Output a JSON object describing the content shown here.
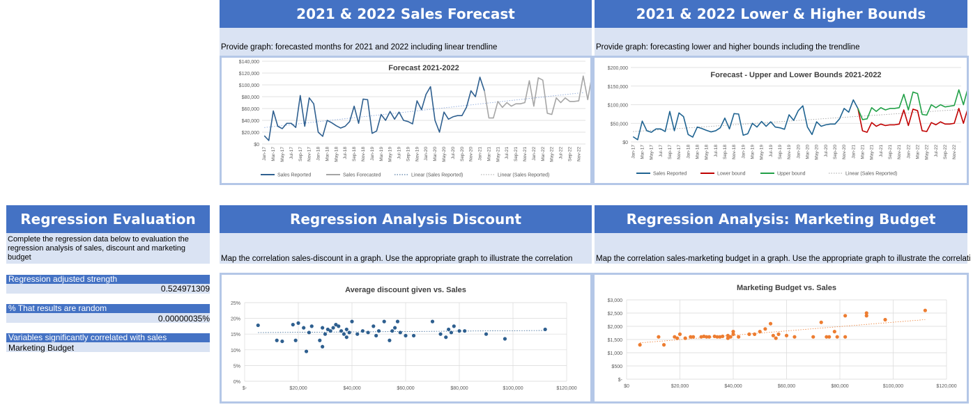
{
  "panels": {
    "forecast": {
      "header": "2021 & 2022 Sales Forecast",
      "instruction": "Provide graph: forecasted months for 2021 and 2022 including linear trendline"
    },
    "bounds": {
      "header": "2021 & 2022 Lower & Higher Bounds",
      "instruction": "Provide graph: forecasting lower and higher bounds including the trendline"
    },
    "regression_eval": {
      "header": "Regression Evaluation",
      "instruction": "Complete the regression data below to evaluation the regression analysis of sales, discount and marketing budget",
      "adj_strength_label": "Regression adjusted strength",
      "adj_strength_value": "0.524971309",
      "random_label": "% That results are random",
      "random_value": "0.00000035%",
      "variables_label": "Variables significantly correlated with sales",
      "variables_value": "Marketing Budget"
    },
    "discount": {
      "header": "Regression Analysis Discount",
      "instruction": "Map the correlation sales-discount in a graph. Use the appropriate graph to illustrate the correlation"
    },
    "marketing": {
      "header": "Regression Analysis: Marketing Budget",
      "instruction": "Map the correlation sales-marketing budget in a graph. Use the appropriate graph to illustrate the correlation"
    }
  },
  "chart_data": [
    {
      "type": "line",
      "title": "Forecast 2021-2022",
      "ylim": [
        0,
        140000
      ],
      "yticks": [
        "$0",
        "$20,000",
        "$40,000",
        "$60,000",
        "$80,000",
        "$100,000",
        "$120,000",
        "$140,000"
      ],
      "xticks": [
        "Jan-17",
        "Mar-17",
        "May-17",
        "Jul-17",
        "Sep-17",
        "Nov-17",
        "Jan-18",
        "Mar-18",
        "May-18",
        "Jul-18",
        "Sep-18",
        "Nov-18",
        "Jan-19",
        "Mar-19",
        "May-19",
        "Jul-19",
        "Sep-19",
        "Nov-19",
        "Jan-20",
        "Mar-20",
        "May-20",
        "Jul-20",
        "Sep-20",
        "Nov-20",
        "Jan-21",
        "Mar-21",
        "May-21",
        "Jul-21",
        "Sep-21",
        "Nov-21",
        "Jan-22",
        "Mar-22",
        "May-22",
        "Jul-22",
        "Sep-22",
        "Nov-22"
      ],
      "series": [
        {
          "name": "Sales Reported",
          "color": "#2e5f8f",
          "values": [
            14000,
            6000,
            56000,
            30000,
            26000,
            35000,
            35000,
            28000,
            82000,
            30000,
            78000,
            68000,
            20000,
            13000,
            40000,
            36000,
            31000,
            27000,
            30000,
            38000,
            64000,
            35000,
            76000,
            75000,
            18000,
            22000,
            50000,
            40000,
            55000,
            42000,
            54000,
            40000,
            38000,
            34000,
            73000,
            58000,
            84000,
            97000,
            40000,
            20000,
            54000,
            42000,
            46000,
            48000,
            48000,
            62000,
            90000,
            80000,
            113000,
            90000
          ]
        },
        {
          "name": "Sales Forecasted",
          "color": "#a5a5a5",
          "values": [
            44000,
            44000,
            72000,
            62000,
            70000,
            64000,
            68000,
            68000,
            70000,
            107000,
            64000,
            112000,
            108000,
            52000,
            50000,
            78000,
            70000,
            78000,
            72000,
            72000,
            73000,
            115000,
            75000,
            118000,
            114000
          ]
        },
        {
          "name": "Linear (Sales Reported)",
          "color": "#2e5f8f"
        },
        {
          "name": "Linear (Sales Reported)",
          "color": "#a5a5a5"
        }
      ]
    },
    {
      "type": "line",
      "title": "Forecast - Upper and Lower Bounds 2021-2022",
      "ylim": [
        0,
        200000
      ],
      "yticks": [
        "$0",
        "$50,000",
        "$100,000",
        "$150,000",
        "$200,000"
      ],
      "xticks": [
        "Jan-17",
        "Mar-17",
        "May-17",
        "Jul-17",
        "Sep-17",
        "Nov-17",
        "Jan-18",
        "Mar-18",
        "May-18",
        "Jul-18",
        "Sep-18",
        "Nov-18",
        "Jan-19",
        "Mar-19",
        "May-19",
        "Jul-19",
        "Sep-19",
        "Nov-19",
        "Jan-20",
        "Mar-20",
        "May-20",
        "Jul-20",
        "Sep-20",
        "Nov-20",
        "Jan-21",
        "Mar-21",
        "May-21",
        "Jul-21",
        "Sep-21",
        "Nov-21",
        "Jan-22",
        "Mar-22",
        "May-22",
        "Jul-22",
        "Sep-22",
        "Nov-22"
      ],
      "series": [
        {
          "name": "Sales Reported",
          "color": "#1f6391",
          "values": [
            14000,
            6000,
            56000,
            30000,
            26000,
            35000,
            35000,
            28000,
            82000,
            30000,
            78000,
            68000,
            20000,
            13000,
            40000,
            36000,
            31000,
            27000,
            30000,
            38000,
            64000,
            35000,
            76000,
            75000,
            18000,
            22000,
            50000,
            40000,
            55000,
            42000,
            54000,
            40000,
            38000,
            34000,
            73000,
            58000,
            84000,
            97000,
            40000,
            20000,
            54000,
            42000,
            46000,
            48000,
            48000,
            62000,
            90000,
            80000,
            113000,
            90000
          ]
        },
        {
          "name": "Lower bound",
          "color": "#c00000",
          "values": [
            30000,
            26000,
            52000,
            42000,
            48000,
            44000,
            46000,
            46000,
            48000,
            86000,
            44000,
            88000,
            84000,
            30000,
            28000,
            52000,
            46000,
            54000,
            48000,
            48000,
            50000,
            90000,
            50000,
            92000,
            88000
          ]
        },
        {
          "name": "Upper bound",
          "color": "#21a047",
          "values": [
            60000,
            62000,
            92000,
            82000,
            92000,
            86000,
            90000,
            90000,
            92000,
            128000,
            86000,
            134000,
            130000,
            74000,
            72000,
            100000,
            92000,
            100000,
            94000,
            96000,
            98000,
            140000,
            100000,
            146000,
            140000
          ]
        },
        {
          "name": "Linear (Sales Reported)",
          "color": "#a5a5a5"
        }
      ]
    },
    {
      "type": "scatter",
      "title": "Average discount given vs. Sales",
      "xlim": [
        0,
        120000
      ],
      "ylim": [
        0,
        0.25
      ],
      "xticks": [
        "$-",
        "$20,000",
        "$40,000",
        "$60,000",
        "$80,000",
        "$100,000",
        "$120,000"
      ],
      "yticks": [
        "0%",
        "5%",
        "10%",
        "15%",
        "20%",
        "25%"
      ],
      "color": "#2e5f8f",
      "points": [
        [
          5000,
          0.178
        ],
        [
          12000,
          0.13
        ],
        [
          14000,
          0.127
        ],
        [
          18000,
          0.18
        ],
        [
          19000,
          0.13
        ],
        [
          20000,
          0.185
        ],
        [
          22000,
          0.17
        ],
        [
          23000,
          0.095
        ],
        [
          24000,
          0.155
        ],
        [
          25000,
          0.175
        ],
        [
          28000,
          0.13
        ],
        [
          29000,
          0.17
        ],
        [
          29000,
          0.11
        ],
        [
          30000,
          0.15
        ],
        [
          31000,
          0.165
        ],
        [
          32000,
          0.16
        ],
        [
          33000,
          0.17
        ],
        [
          34000,
          0.18
        ],
        [
          35000,
          0.175
        ],
        [
          36000,
          0.16
        ],
        [
          37000,
          0.15
        ],
        [
          38000,
          0.165
        ],
        [
          38000,
          0.14
        ],
        [
          39000,
          0.155
        ],
        [
          40000,
          0.19
        ],
        [
          42000,
          0.15
        ],
        [
          44000,
          0.16
        ],
        [
          46000,
          0.155
        ],
        [
          48000,
          0.175
        ],
        [
          49000,
          0.145
        ],
        [
          50000,
          0.16
        ],
        [
          52000,
          0.19
        ],
        [
          54000,
          0.13
        ],
        [
          55000,
          0.16
        ],
        [
          56000,
          0.17
        ],
        [
          57000,
          0.19
        ],
        [
          58000,
          0.155
        ],
        [
          60000,
          0.145
        ],
        [
          63000,
          0.145
        ],
        [
          70000,
          0.19
        ],
        [
          73000,
          0.15
        ],
        [
          75000,
          0.14
        ],
        [
          76000,
          0.165
        ],
        [
          77000,
          0.155
        ],
        [
          78000,
          0.175
        ],
        [
          80000,
          0.16
        ],
        [
          82000,
          0.16
        ],
        [
          90000,
          0.15
        ],
        [
          97000,
          0.135
        ],
        [
          112000,
          0.165
        ]
      ]
    },
    {
      "type": "scatter",
      "title": "Marketing Budget vs. Sales",
      "xlim": [
        0,
        120000
      ],
      "ylim": [
        0,
        3000
      ],
      "xticks": [
        "$0",
        "$20,000",
        "$40,000",
        "$60,000",
        "$80,000",
        "$100,000",
        "$120,000"
      ],
      "yticks": [
        "$-",
        "$500",
        "$1,000",
        "$1,500",
        "$2,000",
        "$2,500",
        "$3,000"
      ],
      "color": "#ed7d31",
      "points": [
        [
          5000,
          1300
        ],
        [
          12000,
          1600
        ],
        [
          14000,
          1300
        ],
        [
          18000,
          1600
        ],
        [
          19000,
          1550
        ],
        [
          20000,
          1700
        ],
        [
          22000,
          1550
        ],
        [
          24000,
          1600
        ],
        [
          25000,
          1600
        ],
        [
          28000,
          1600
        ],
        [
          29000,
          1620
        ],
        [
          30000,
          1600
        ],
        [
          31000,
          1600
        ],
        [
          33000,
          1620
        ],
        [
          34000,
          1600
        ],
        [
          35000,
          1600
        ],
        [
          36000,
          1620
        ],
        [
          38000,
          1550
        ],
        [
          38000,
          1650
        ],
        [
          39000,
          1600
        ],
        [
          40000,
          1700
        ],
        [
          40000,
          1800
        ],
        [
          42000,
          1600
        ],
        [
          46000,
          1700
        ],
        [
          48000,
          1700
        ],
        [
          50000,
          1800
        ],
        [
          52000,
          1900
        ],
        [
          54000,
          2100
        ],
        [
          55000,
          1650
        ],
        [
          56000,
          1550
        ],
        [
          57000,
          1700
        ],
        [
          60000,
          1650
        ],
        [
          63000,
          1600
        ],
        [
          70000,
          1600
        ],
        [
          73000,
          2150
        ],
        [
          75000,
          1600
        ],
        [
          76000,
          1600
        ],
        [
          78000,
          1800
        ],
        [
          79000,
          1600
        ],
        [
          82000,
          1600
        ],
        [
          82000,
          2400
        ],
        [
          90000,
          2400
        ],
        [
          90000,
          2500
        ],
        [
          97000,
          2250
        ],
        [
          112000,
          2600
        ]
      ]
    }
  ]
}
